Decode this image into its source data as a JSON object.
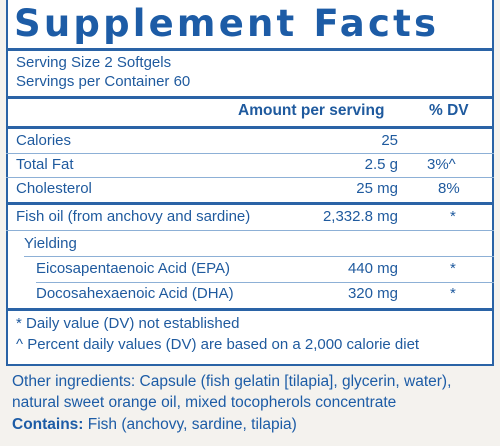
{
  "title": "Supplement Facts",
  "serving_size": "Serving Size 2 Softgels",
  "servings_per_container": "Servings per Container 60",
  "header": {
    "amount": "Amount per serving",
    "dv": "% DV"
  },
  "rows": [
    {
      "name": "Calories",
      "amount": "25",
      "dv": ""
    },
    {
      "name": "Total Fat",
      "amount": "2.5 g",
      "dv": "3%^"
    },
    {
      "name": "Cholesterol",
      "amount": "25 mg",
      "dv": "8%"
    },
    {
      "name": "Fish oil (from anchovy and sardine)",
      "amount": "2,332.8 mg",
      "dv": "*"
    },
    {
      "name": "Yielding",
      "amount": "",
      "dv": ""
    },
    {
      "name": "Eicosapentaenoic Acid (EPA)",
      "amount": "440 mg",
      "dv": "*"
    },
    {
      "name": "Docosahexaenoic Acid (DHA)",
      "amount": "320 mg",
      "dv": "*"
    }
  ],
  "footnotes": [
    "* Daily value (DV) not established",
    "^ Percent daily values (DV) are based on a 2,000 calorie diet"
  ],
  "other_ingredients": {
    "line1": "Other ingredients: Capsule (fish gelatin [tilapia], glycerin, water),",
    "line2": "natural sweet orange oil, mixed tocopherols concentrate"
  },
  "contains": {
    "label": "Contains:",
    "value": " Fish (anchovy, sardine, tilapia)"
  },
  "colors": {
    "text": "#1f5a9e",
    "border": "#2a63a6",
    "background": "#f4f2ee",
    "panel": "#ffffff"
  }
}
